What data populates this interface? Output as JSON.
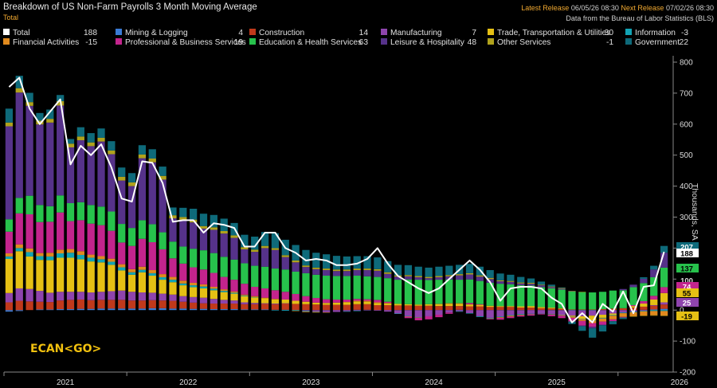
{
  "header": {
    "title": "Breakdown of US Non-Farm Payrolls 3 Month Moving Average",
    "subtitle": "Total",
    "latest_release_label": "Latest Release",
    "latest_release_value": "06/05/26 08:30",
    "next_release_label": "Next Release",
    "next_release_value": "07/02/26 08:30",
    "source": "Data from the Bureau of Labor Statistics (BLS)"
  },
  "watermark": "ECAN<GO>",
  "chart_data": {
    "type": "bar",
    "ylabel": "Thousands, SA",
    "ylim": [
      -200,
      800
    ],
    "yticks": [
      -200,
      -100,
      0,
      100,
      200,
      300,
      400,
      500,
      600,
      700,
      800
    ],
    "xtick_labels": [
      "2021",
      "2022",
      "2023",
      "2024",
      "2025",
      "2026"
    ],
    "grid": false,
    "legend_position": "top",
    "stacked": true,
    "months": [
      "2021-01",
      "2021-02",
      "2021-03",
      "2021-04",
      "2021-05",
      "2021-06",
      "2021-07",
      "2021-08",
      "2021-09",
      "2021-10",
      "2021-11",
      "2021-12",
      "2022-01",
      "2022-02",
      "2022-03",
      "2022-04",
      "2022-05",
      "2022-06",
      "2022-07",
      "2022-08",
      "2022-09",
      "2022-10",
      "2022-11",
      "2022-12",
      "2023-01",
      "2023-02",
      "2023-03",
      "2023-04",
      "2023-05",
      "2023-06",
      "2023-07",
      "2023-08",
      "2023-09",
      "2023-10",
      "2023-11",
      "2023-12",
      "2024-01",
      "2024-02",
      "2024-03",
      "2024-04",
      "2024-05",
      "2024-06",
      "2024-07",
      "2024-08",
      "2024-09",
      "2024-10",
      "2024-11",
      "2024-12",
      "2025-01",
      "2025-02",
      "2025-03",
      "2025-04",
      "2025-05",
      "2025-06",
      "2025-07",
      "2025-08",
      "2025-09",
      "2025-10",
      "2025-11",
      "2025-12",
      "2026-01",
      "2026-02",
      "2026-03",
      "2026-04",
      "2026-05"
    ],
    "total": [
      720,
      750,
      650,
      600,
      640,
      680,
      470,
      530,
      500,
      535,
      460,
      360,
      350,
      480,
      475,
      410,
      285,
      290,
      290,
      250,
      280,
      275,
      265,
      205,
      205,
      250,
      250,
      200,
      185,
      160,
      165,
      160,
      145,
      145,
      150,
      165,
      200,
      150,
      110,
      90,
      70,
      55,
      70,
      100,
      130,
      160,
      130,
      90,
      30,
      70,
      75,
      75,
      70,
      40,
      20,
      -40,
      -10,
      -40,
      20,
      -5,
      60,
      -10,
      75,
      80,
      188
    ],
    "series": [
      {
        "name": "Total",
        "color": "#ffffff",
        "value": 188,
        "kind": "line"
      },
      {
        "name": "Mining & Logging",
        "color": "#3a7bd5",
        "value": 4,
        "values": [
          -5,
          -3,
          0,
          2,
          2,
          3,
          3,
          4,
          4,
          5,
          5,
          5,
          5,
          5,
          6,
          6,
          5,
          5,
          4,
          4,
          3,
          3,
          3,
          2,
          2,
          2,
          1,
          1,
          0,
          -1,
          -1,
          -1,
          0,
          0,
          1,
          1,
          0,
          0,
          -1,
          -1,
          -1,
          0,
          0,
          0,
          1,
          0,
          0,
          0,
          -1,
          -1,
          -1,
          0,
          0,
          -1,
          -1,
          -2,
          -2,
          -2,
          -1,
          -1,
          0,
          0,
          1,
          2,
          4
        ]
      },
      {
        "name": "Construction",
        "color": "#c0391b",
        "value": 14,
        "values": [
          25,
          30,
          28,
          25,
          24,
          28,
          30,
          30,
          28,
          28,
          28,
          28,
          26,
          26,
          26,
          25,
          25,
          22,
          20,
          18,
          18,
          18,
          18,
          17,
          17,
          18,
          18,
          20,
          20,
          19,
          18,
          17,
          17,
          17,
          18,
          18,
          16,
          16,
          15,
          15,
          14,
          14,
          13,
          13,
          12,
          12,
          12,
          10,
          10,
          10,
          8,
          8,
          6,
          5,
          4,
          2,
          2,
          2,
          3,
          5,
          6,
          8,
          10,
          12,
          14
        ]
      },
      {
        "name": "Manufacturing",
        "color": "#8e44ad",
        "value": 7,
        "values": [
          30,
          40,
          40,
          35,
          30,
          28,
          26,
          25,
          25,
          26,
          28,
          30,
          28,
          26,
          24,
          22,
          20,
          18,
          18,
          18,
          15,
          12,
          10,
          6,
          4,
          2,
          2,
          1,
          0,
          -2,
          -4,
          -6,
          -6,
          -4,
          -2,
          -1,
          -2,
          -5,
          -10,
          -18,
          -22,
          -20,
          -15,
          -8,
          -4,
          -10,
          -20,
          -25,
          -20,
          -15,
          -12,
          -12,
          -10,
          -12,
          -14,
          -16,
          -18,
          -16,
          -14,
          -10,
          -8,
          -5,
          -2,
          2,
          7
        ]
      },
      {
        "name": "Trade, Transportation & Utilities",
        "color": "#e5c014",
        "value": 30,
        "values": [
          110,
          120,
          105,
          100,
          105,
          110,
          110,
          105,
          100,
          95,
          85,
          65,
          55,
          65,
          55,
          45,
          40,
          35,
          32,
          30,
          28,
          25,
          22,
          20,
          18,
          16,
          14,
          12,
          10,
          8,
          6,
          6,
          7,
          8,
          9,
          8,
          7,
          6,
          5,
          4,
          4,
          5,
          6,
          7,
          7,
          6,
          5,
          4,
          3,
          3,
          4,
          5,
          4,
          3,
          2,
          -2,
          -8,
          -15,
          -10,
          -5,
          0,
          5,
          10,
          18,
          30
        ]
      },
      {
        "name": "Information",
        "color": "#12a4b5",
        "value": -3,
        "values": [
          8,
          10,
          14,
          12,
          12,
          14,
          16,
          14,
          12,
          10,
          10,
          10,
          8,
          8,
          8,
          8,
          8,
          6,
          6,
          6,
          5,
          4,
          3,
          2,
          1,
          0,
          -1,
          -2,
          -2,
          -2,
          -1,
          0,
          0,
          -1,
          -1,
          0,
          0,
          0,
          -1,
          -1,
          -1,
          0,
          0,
          0,
          -1,
          -1,
          -2,
          -2,
          -2,
          -2,
          -2,
          -1,
          -1,
          -1,
          -1,
          -1,
          -1,
          -1,
          -2,
          -2,
          -2,
          -2,
          -2,
          -3,
          -3
        ]
      },
      {
        "name": "Financial Activities",
        "color": "#e08a1e",
        "value": -15,
        "values": [
          10,
          12,
          12,
          10,
          12,
          12,
          12,
          12,
          10,
          10,
          10,
          10,
          10,
          10,
          10,
          10,
          9,
          9,
          8,
          7,
          6,
          5,
          4,
          3,
          3,
          2,
          1,
          0,
          -1,
          -2,
          -2,
          -1,
          0,
          1,
          2,
          3,
          2,
          1,
          0,
          -1,
          -1,
          0,
          1,
          2,
          2,
          1,
          0,
          -1,
          -2,
          -3,
          -2,
          -1,
          0,
          -1,
          -2,
          -4,
          -6,
          -8,
          -10,
          -12,
          -12,
          -13,
          -14,
          -14,
          -15
        ]
      },
      {
        "name": "Professional & Business Services",
        "color": "#c3248d",
        "value": 19,
        "values": [
          70,
          100,
          110,
          100,
          100,
          120,
          90,
          100,
          100,
          100,
          90,
          70,
          75,
          90,
          90,
          80,
          60,
          55,
          50,
          48,
          45,
          40,
          38,
          35,
          30,
          30,
          28,
          25,
          22,
          18,
          15,
          12,
          10,
          8,
          6,
          5,
          8,
          4,
          0,
          -5,
          -8,
          -10,
          -8,
          -4,
          0,
          4,
          2,
          -2,
          -6,
          -5,
          -4,
          -4,
          -3,
          -5,
          -8,
          -12,
          -15,
          -12,
          -10,
          -6,
          -2,
          3,
          8,
          12,
          19
        ]
      },
      {
        "name": "Education & Health Services",
        "color": "#27c24c",
        "value": 63,
        "values": [
          40,
          50,
          60,
          55,
          50,
          55,
          58,
          58,
          60,
          60,
          62,
          60,
          58,
          60,
          58,
          55,
          54,
          55,
          60,
          62,
          64,
          65,
          65,
          66,
          68,
          70,
          70,
          72,
          72,
          74,
          75,
          76,
          76,
          76,
          75,
          74,
          74,
          76,
          78,
          80,
          80,
          78,
          78,
          77,
          76,
          76,
          75,
          74,
          72,
          70,
          68,
          66,
          64,
          62,
          60,
          58,
          56,
          55,
          56,
          58,
          58,
          58,
          58,
          60,
          63
        ]
      },
      {
        "name": "Leisure & Hospitality",
        "color": "#56328a",
        "value": 48,
        "values": [
          300,
          340,
          290,
          260,
          270,
          290,
          180,
          200,
          190,
          210,
          185,
          140,
          135,
          200,
          200,
          170,
          75,
          85,
          85,
          70,
          75,
          75,
          70,
          45,
          45,
          60,
          60,
          40,
          30,
          20,
          18,
          18,
          16,
          16,
          18,
          20,
          20,
          14,
          10,
          10,
          8,
          6,
          8,
          10,
          14,
          16,
          14,
          12,
          8,
          8,
          6,
          6,
          6,
          4,
          3,
          1,
          -2,
          -5,
          -2,
          0,
          4,
          8,
          14,
          25,
          48
        ]
      },
      {
        "name": "Other Services",
        "color": "#b0a21c",
        "value": -1,
        "values": [
          12,
          14,
          12,
          12,
          12,
          14,
          12,
          12,
          12,
          12,
          12,
          12,
          12,
          12,
          12,
          12,
          10,
          10,
          9,
          8,
          8,
          8,
          8,
          7,
          7,
          7,
          6,
          6,
          6,
          5,
          5,
          5,
          5,
          5,
          5,
          5,
          5,
          5,
          4,
          4,
          4,
          4,
          4,
          4,
          4,
          4,
          4,
          4,
          3,
          3,
          3,
          3,
          2,
          2,
          2,
          1,
          1,
          0,
          0,
          0,
          0,
          -1,
          -1,
          -1,
          -1
        ]
      },
      {
        "name": "Government",
        "color": "#0e6a7a",
        "value": 22,
        "values": [
          45,
          40,
          30,
          25,
          30,
          20,
          15,
          30,
          30,
          30,
          30,
          30,
          30,
          30,
          30,
          30,
          25,
          30,
          35,
          40,
          40,
          40,
          40,
          40,
          42,
          45,
          48,
          50,
          50,
          50,
          48,
          46,
          44,
          42,
          40,
          40,
          38,
          36,
          34,
          32,
          30,
          30,
          30,
          30,
          30,
          30,
          28,
          25,
          22,
          20,
          18,
          14,
          10,
          6,
          2,
          -8,
          -15,
          -30,
          -20,
          -10,
          -5,
          0,
          5,
          12,
          22
        ]
      }
    ],
    "right_labels": [
      {
        "text": "207",
        "color": "#0e6a7a",
        "text_color": "#ffffff"
      },
      {
        "text": "188",
        "color": "#ffffff",
        "text_color": "#000000"
      },
      {
        "text": "137",
        "color": "#27c24c",
        "text_color": "#000000"
      },
      {
        "text": "100",
        "color": "#000000",
        "text_color": "#dddddd"
      },
      {
        "text": "74",
        "color": "#c3248d",
        "text_color": "#ffffff"
      },
      {
        "text": "55",
        "color": "#e5c014",
        "text_color": "#000000"
      },
      {
        "text": "25",
        "color": "#8e44ad",
        "text_color": "#ffffff"
      },
      {
        "text": "-19",
        "color": "#e5c014",
        "text_color": "#000000"
      }
    ]
  }
}
